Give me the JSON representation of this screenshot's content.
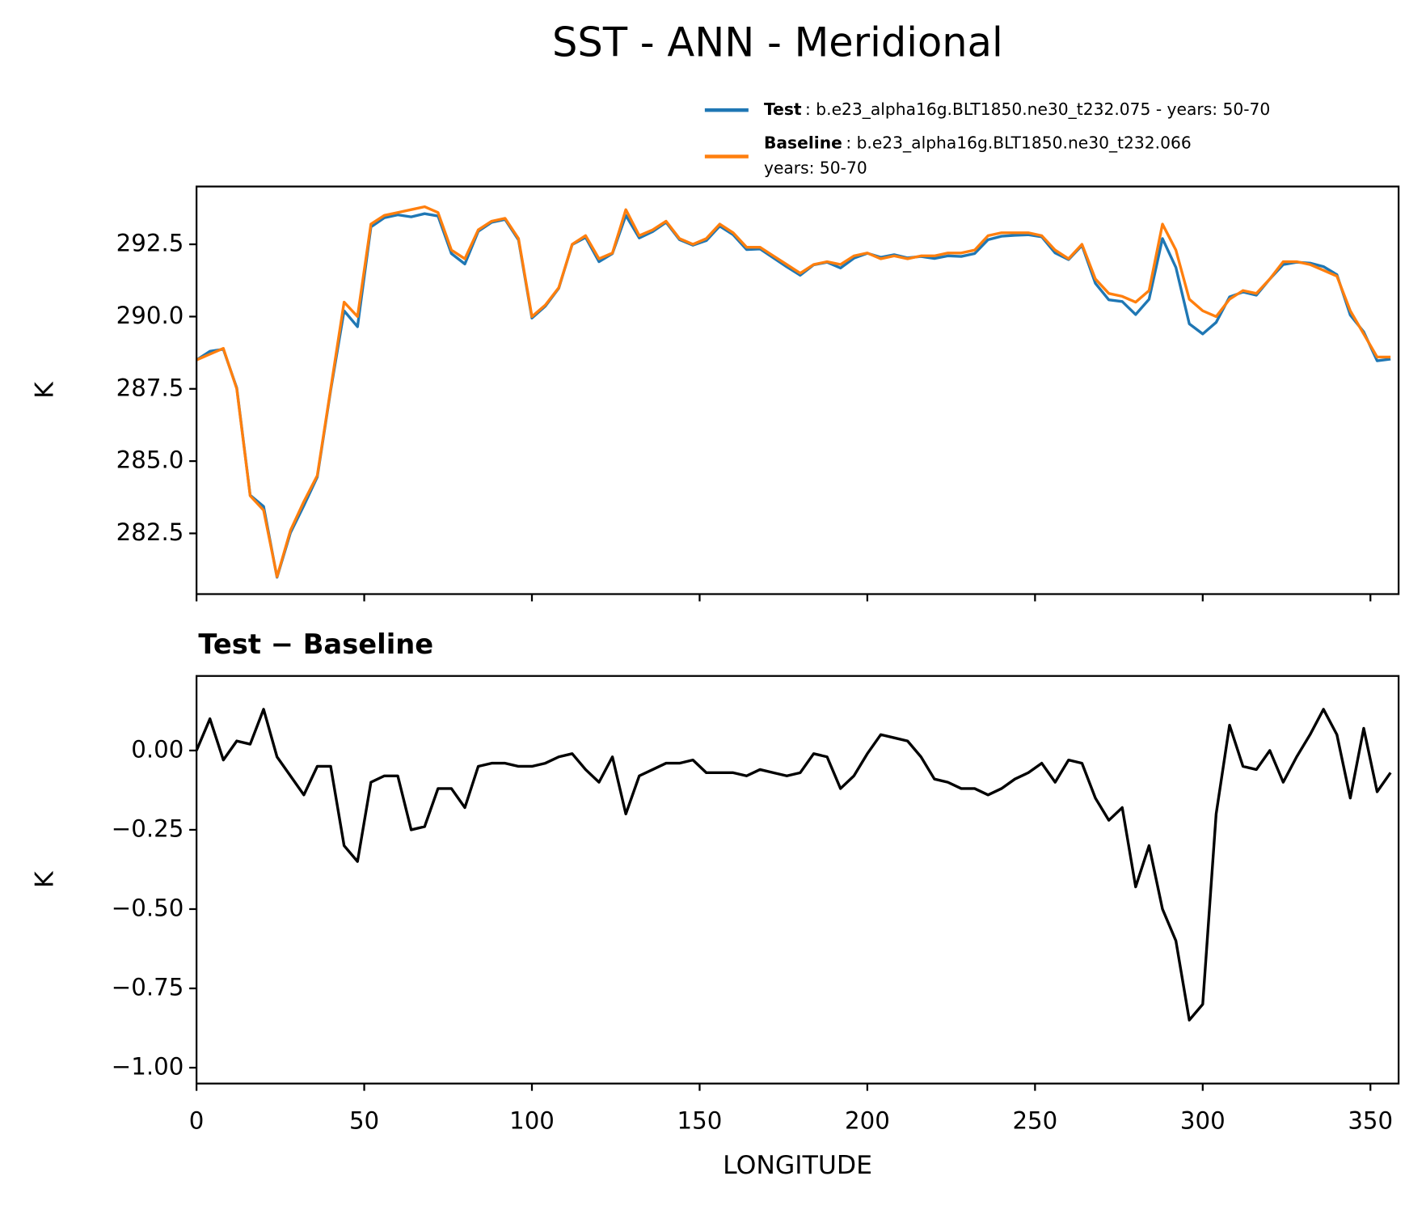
{
  "title": "SST - ANN - Meridional",
  "chart_data": [
    {
      "type": "line",
      "ylabel": "K",
      "xlim": [
        0,
        358.4
      ],
      "ylim": [
        280.4,
        294.5
      ],
      "xticks": [
        0,
        50,
        100,
        150,
        200,
        250,
        300,
        350
      ],
      "xticklabels": false,
      "yticks": [
        282.5,
        {
          "value": 285,
          "label": "285.0"
        },
        287.5,
        {
          "value": 290,
          "label": "290.0"
        },
        292.5
      ],
      "x": [
        0,
        4,
        8,
        12,
        16,
        20,
        24,
        28,
        32,
        36,
        40,
        44,
        48,
        52,
        56,
        60,
        64,
        68,
        72,
        76,
        80,
        84,
        88,
        92,
        96,
        100,
        104,
        108,
        112,
        116,
        120,
        124,
        128,
        132,
        136,
        140,
        144,
        148,
        152,
        156,
        160,
        164,
        168,
        172,
        176,
        180,
        184,
        188,
        192,
        196,
        200,
        204,
        208,
        212,
        216,
        220,
        224,
        228,
        232,
        236,
        240,
        244,
        248,
        252,
        256,
        260,
        264,
        268,
        272,
        276,
        280,
        284,
        288,
        292,
        296,
        300,
        304,
        308,
        312,
        316,
        320,
        324,
        328,
        332,
        336,
        340,
        344,
        348,
        352,
        356
      ],
      "series": [
        {
          "name": "Test",
          "description": [
            ": b.e23_alpha16g.BLT1850.ne30_t232.075 - years: 50-70"
          ],
          "color": "#1f77b4",
          "values": [
            288.5,
            288.8,
            288.87,
            287.53,
            283.82,
            283.43,
            280.98,
            282.52,
            283.46,
            284.45,
            287.45,
            290.2,
            289.65,
            293.1,
            293.42,
            293.52,
            293.45,
            293.56,
            293.48,
            292.18,
            291.82,
            292.95,
            293.26,
            293.36,
            292.65,
            289.95,
            290.36,
            290.98,
            292.49,
            292.74,
            291.9,
            292.18,
            293.5,
            292.72,
            292.94,
            293.26,
            292.66,
            292.47,
            292.63,
            293.13,
            292.83,
            292.32,
            292.34,
            292.03,
            291.72,
            291.43,
            291.79,
            291.88,
            291.68,
            292.02,
            292.19,
            292.05,
            292.14,
            292.03,
            292.08,
            292.01,
            292.1,
            292.08,
            292.18,
            292.66,
            292.78,
            292.81,
            292.83,
            292.76,
            292.2,
            291.97,
            292.46,
            291.15,
            290.58,
            290.52,
            290.07,
            290.6,
            292.7,
            291.7,
            289.75,
            289.4,
            289.8,
            290.68,
            290.85,
            290.74,
            291.3,
            291.8,
            291.88,
            291.85,
            291.73,
            291.45,
            290.05,
            289.47,
            288.47,
            288.53
          ]
        },
        {
          "name": "Baseline",
          "description": [
            ": b.e23_alpha16g.BLT1850.ne30_t232.066",
            "years: 50-70"
          ],
          "color": "#ff7f0e",
          "values": [
            288.5,
            288.7,
            288.9,
            287.5,
            283.8,
            283.3,
            281.0,
            282.6,
            283.6,
            284.5,
            287.5,
            290.5,
            290.0,
            293.2,
            293.5,
            293.6,
            293.7,
            293.8,
            293.6,
            292.3,
            292.0,
            293.0,
            293.3,
            293.4,
            292.7,
            290.0,
            290.4,
            291.0,
            292.5,
            292.8,
            292.0,
            292.2,
            293.7,
            292.8,
            293.0,
            293.3,
            292.7,
            292.5,
            292.7,
            293.2,
            292.9,
            292.4,
            292.4,
            292.1,
            291.8,
            291.5,
            291.8,
            291.9,
            291.8,
            292.1,
            292.2,
            292.0,
            292.1,
            292.0,
            292.1,
            292.1,
            292.2,
            292.2,
            292.3,
            292.8,
            292.9,
            292.9,
            292.9,
            292.8,
            292.3,
            292.0,
            292.5,
            291.3,
            290.8,
            290.7,
            290.5,
            290.9,
            293.2,
            292.3,
            290.6,
            290.2,
            290.0,
            290.6,
            290.9,
            290.8,
            291.3,
            291.9,
            291.9,
            291.8,
            291.6,
            291.4,
            290.2,
            289.4,
            288.6,
            288.6
          ]
        }
      ]
    },
    {
      "type": "line",
      "title": "Test − Baseline",
      "ylabel": "K",
      "xlabel": "LONGITUDE",
      "xlim": [
        0,
        358.4
      ],
      "ylim": [
        -1.05,
        0.235
      ],
      "xticks": [
        0,
        50,
        100,
        150,
        200,
        250,
        300,
        350
      ],
      "xticklabels": true,
      "yticks": [
        {
          "value": 0,
          "label": "0.00"
        },
        {
          "value": -0.25,
          "label": "−0.25"
        },
        {
          "value": -0.5,
          "label": "−0.50"
        },
        {
          "value": -0.75,
          "label": "−0.75"
        },
        {
          "value": -1,
          "label": "−1.00"
        }
      ],
      "x": [
        0,
        4,
        8,
        12,
        16,
        20,
        24,
        28,
        32,
        36,
        40,
        44,
        48,
        52,
        56,
        60,
        64,
        68,
        72,
        76,
        80,
        84,
        88,
        92,
        96,
        100,
        104,
        108,
        112,
        116,
        120,
        124,
        128,
        132,
        136,
        140,
        144,
        148,
        152,
        156,
        160,
        164,
        168,
        172,
        176,
        180,
        184,
        188,
        192,
        196,
        200,
        204,
        208,
        212,
        216,
        220,
        224,
        228,
        232,
        236,
        240,
        244,
        248,
        252,
        256,
        260,
        264,
        268,
        272,
        276,
        280,
        284,
        288,
        292,
        296,
        300,
        304,
        308,
        312,
        316,
        320,
        324,
        328,
        332,
        336,
        340,
        344,
        348,
        352,
        356
      ],
      "series": [
        {
          "color": "#000000",
          "values": [
            0.0,
            0.1,
            -0.03,
            0.03,
            0.02,
            0.13,
            -0.02,
            -0.08,
            -0.14,
            -0.05,
            -0.05,
            -0.3,
            -0.35,
            -0.1,
            -0.08,
            -0.08,
            -0.25,
            -0.24,
            -0.12,
            -0.12,
            -0.18,
            -0.05,
            -0.04,
            -0.04,
            -0.05,
            -0.05,
            -0.04,
            -0.02,
            -0.01,
            -0.06,
            -0.1,
            -0.02,
            -0.2,
            -0.08,
            -0.06,
            -0.04,
            -0.04,
            -0.03,
            -0.07,
            -0.07,
            -0.07,
            -0.08,
            -0.06,
            -0.07,
            -0.08,
            -0.07,
            -0.01,
            -0.02,
            -0.12,
            -0.08,
            -0.01,
            0.05,
            0.04,
            0.03,
            -0.02,
            -0.09,
            -0.1,
            -0.12,
            -0.12,
            -0.14,
            -0.12,
            -0.09,
            -0.07,
            -0.04,
            -0.1,
            -0.03,
            -0.04,
            -0.15,
            -0.22,
            -0.18,
            -0.43,
            -0.3,
            -0.5,
            -0.6,
            -0.85,
            -0.8,
            -0.2,
            0.08,
            -0.05,
            -0.06,
            0.0,
            -0.1,
            -0.02,
            0.05,
            0.13,
            0.05,
            -0.15,
            0.07,
            -0.13,
            -0.07
          ]
        }
      ]
    }
  ]
}
